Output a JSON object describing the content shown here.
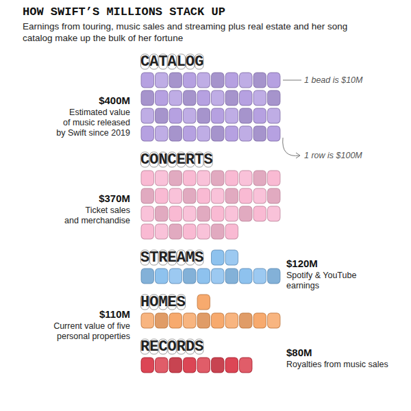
{
  "chart_data": {
    "type": "pictorial",
    "title": "HOW SWIFT’S MILLIONS STACK UP",
    "subtitle": "Earnings from touring, music sales and streaming plus real estate and her song catalog make up the bulk of her fortune",
    "categories": [
      "CATALOG",
      "CONCERTS",
      "STREAMS",
      "HOMES",
      "RECORDS"
    ],
    "values": [
      400,
      370,
      120,
      110,
      80
    ],
    "value_labels": [
      "$400M",
      "$370M",
      "$120M",
      "$110M",
      "$80M"
    ],
    "descriptions": [
      "Estimated value\nof music released\nby Swift since 2019",
      "Ticket sales\nand merchandise",
      "Spotify & YouTube\nearnings",
      "Current value of five\npersonal properties",
      "Royalties from music sales"
    ],
    "colors": [
      "#a48ad9",
      "#f7a9c8",
      "#72b3ea",
      "#f5954a",
      "#d3182b"
    ],
    "unit_annotations": [
      {
        "text": "1 bead is $10M",
        "value": 10
      },
      {
        "text": "1 row is $100M",
        "value": 100
      }
    ],
    "tick_labels": false
  }
}
